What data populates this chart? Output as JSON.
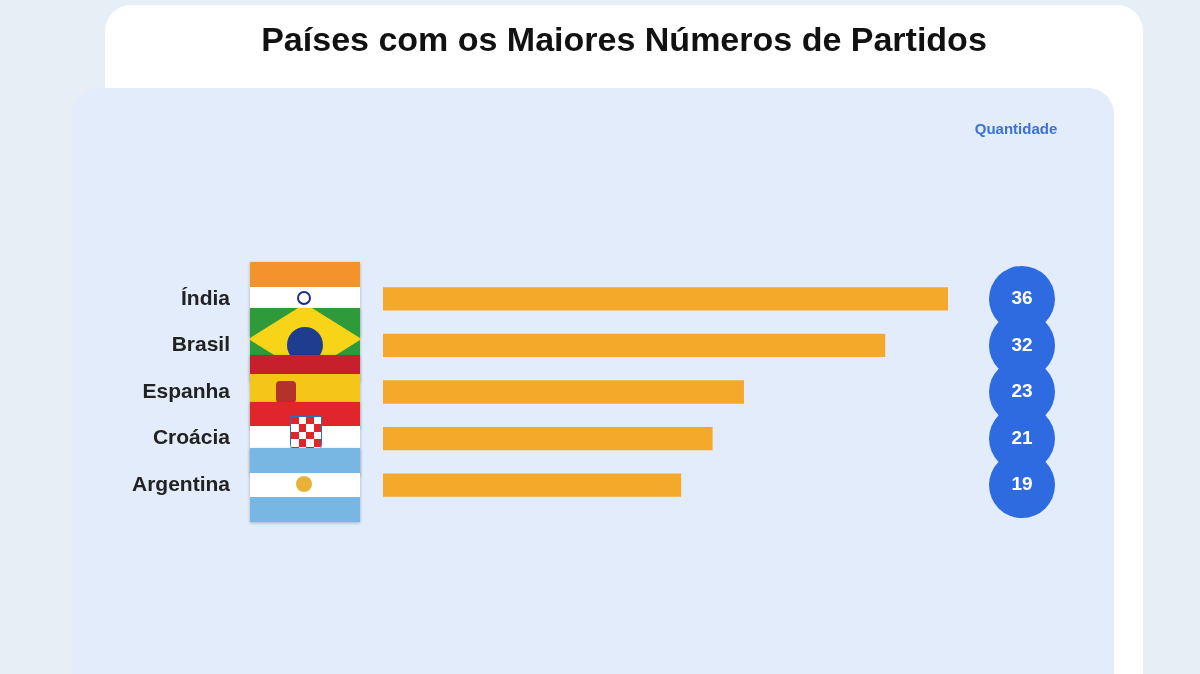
{
  "chart_data": {
    "type": "bar",
    "orientation": "horizontal",
    "title": "Países com os Maiores Números de Partidos",
    "categories": [
      "Índia",
      "Brasil",
      "Espanha",
      "Croácia",
      "Argentina"
    ],
    "values": [
      36,
      32,
      23,
      21,
      19
    ],
    "color": "#f5a92b",
    "data_labels": true,
    "annotations": [
      "Quantidade"
    ],
    "legend": false,
    "grid": false
  }
}
